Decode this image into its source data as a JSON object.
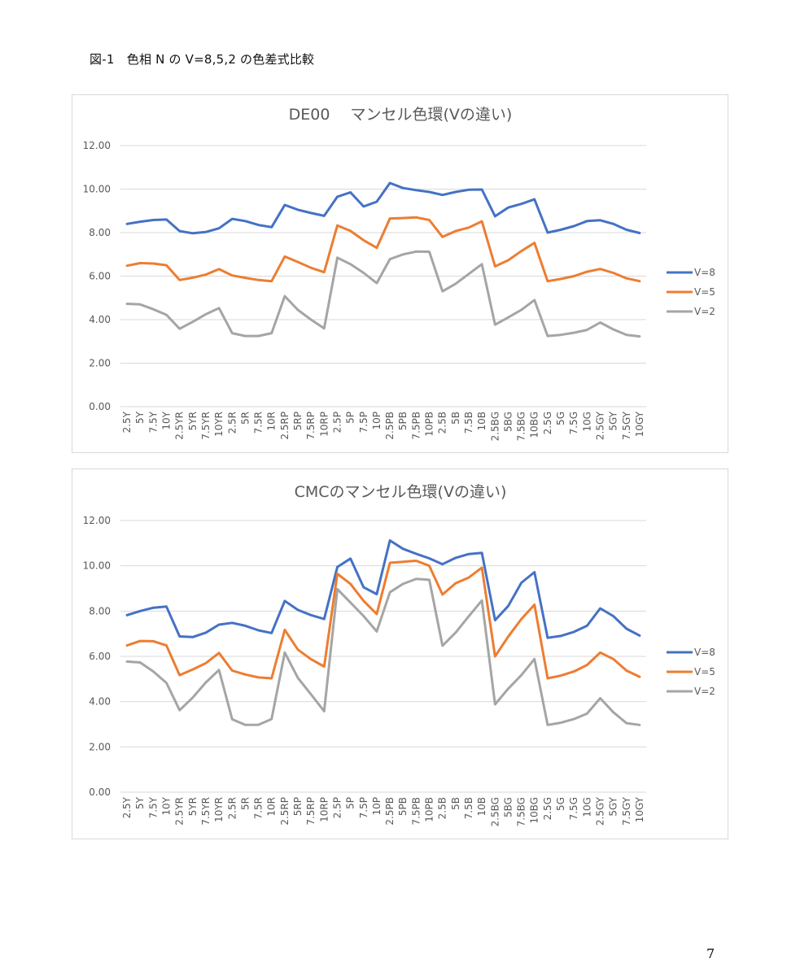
{
  "caption": "図-1　色相 N の V=8,5,2 の色差式比較",
  "page_number": "7",
  "chart_data": [
    {
      "type": "line",
      "title": "DE00　 マンセル色環(Vの違い)",
      "ylim": [
        0,
        12
      ],
      "yticks": [
        "0.00",
        "2.00",
        "4.00",
        "6.00",
        "8.00",
        "10.00",
        "12.00"
      ],
      "grid": true,
      "legend": "right",
      "categories": [
        "2.5Y",
        "5Y",
        "7.5Y",
        "10Y",
        "2.5YR",
        "5YR",
        "7.5YR",
        "10YR",
        "2.5R",
        "5R",
        "7.5R",
        "10R",
        "2.5RP",
        "5RP",
        "7.5RP",
        "10RP",
        "2.5P",
        "5P",
        "7.5P",
        "10P",
        "2.5PB",
        "5PB",
        "7.5PB",
        "10PB",
        "2.5B",
        "5B",
        "7.5B",
        "10B",
        "2.5BG",
        "5BG",
        "7.5BG",
        "10BG",
        "2.5G",
        "5G",
        "7.5G",
        "10G",
        "2.5GY",
        "5GY",
        "7.5GY",
        "10GY"
      ],
      "series": [
        {
          "name": "V=8",
          "color": "#4472C4",
          "values": [
            8.4,
            8.5,
            8.58,
            8.6,
            8.07,
            7.97,
            8.03,
            8.2,
            8.63,
            8.53,
            8.35,
            8.25,
            9.27,
            9.05,
            8.9,
            8.77,
            9.65,
            9.85,
            9.2,
            9.42,
            10.28,
            10.05,
            9.95,
            9.87,
            9.73,
            9.87,
            9.97,
            9.98,
            8.75,
            9.15,
            9.32,
            9.53,
            8.0,
            8.13,
            8.3,
            8.53,
            8.57,
            8.4,
            8.13,
            7.98
          ]
        },
        {
          "name": "V=5",
          "color": "#ED7D31",
          "values": [
            6.48,
            6.6,
            6.58,
            6.5,
            5.82,
            5.93,
            6.07,
            6.32,
            6.03,
            5.92,
            5.82,
            5.77,
            6.9,
            6.65,
            6.38,
            6.18,
            8.33,
            8.08,
            7.65,
            7.3,
            8.65,
            8.67,
            8.7,
            8.58,
            7.8,
            8.07,
            8.23,
            8.52,
            6.45,
            6.73,
            7.15,
            7.53,
            5.77,
            5.87,
            6.0,
            6.2,
            6.33,
            6.15,
            5.9,
            5.77
          ]
        },
        {
          "name": "V=2",
          "color": "#A5A5A5",
          "values": [
            4.73,
            4.7,
            4.48,
            4.22,
            3.58,
            3.9,
            4.25,
            4.53,
            3.38,
            3.25,
            3.25,
            3.38,
            5.08,
            4.45,
            4.0,
            3.6,
            6.85,
            6.55,
            6.15,
            5.68,
            6.78,
            7.0,
            7.13,
            7.12,
            5.3,
            5.65,
            6.1,
            6.55,
            3.77,
            4.1,
            4.45,
            4.9,
            3.25,
            3.3,
            3.4,
            3.53,
            3.87,
            3.55,
            3.3,
            3.23
          ]
        }
      ]
    },
    {
      "type": "line",
      "title": "CMCのマンセル色環(Vの違い)",
      "ylim": [
        0,
        12
      ],
      "yticks": [
        "0.00",
        "2.00",
        "4.00",
        "6.00",
        "8.00",
        "10.00",
        "12.00"
      ],
      "grid": true,
      "legend": "right",
      "categories": [
        "2.5Y",
        "5Y",
        "7.5Y",
        "10Y",
        "2.5YR",
        "5YR",
        "7.5YR",
        "10YR",
        "2.5R",
        "5R",
        "7.5R",
        "10R",
        "2.5RP",
        "5RP",
        "7.5RP",
        "10RP",
        "2.5P",
        "5P",
        "7.5P",
        "10P",
        "2.5PB",
        "5PB",
        "7.5PB",
        "10PB",
        "2.5B",
        "5B",
        "7.5B",
        "10B",
        "2.5BG",
        "5BG",
        "7.5BG",
        "10BG",
        "2.5G",
        "5G",
        "7.5G",
        "10G",
        "2.5GY",
        "5GY",
        "7.5GY",
        "10GY"
      ],
      "series": [
        {
          "name": "V=8",
          "color": "#4472C4",
          "values": [
            7.82,
            8.0,
            8.15,
            8.2,
            6.88,
            6.85,
            7.05,
            7.4,
            7.48,
            7.35,
            7.15,
            7.03,
            8.45,
            8.05,
            7.82,
            7.65,
            9.95,
            10.32,
            9.05,
            8.75,
            11.12,
            10.75,
            10.53,
            10.33,
            10.07,
            10.35,
            10.52,
            10.57,
            7.6,
            8.22,
            9.25,
            9.72,
            6.82,
            6.9,
            7.08,
            7.35,
            8.12,
            7.78,
            7.22,
            6.92
          ]
        },
        {
          "name": "V=5",
          "color": "#ED7D31",
          "values": [
            6.48,
            6.68,
            6.67,
            6.48,
            5.17,
            5.42,
            5.7,
            6.15,
            5.37,
            5.2,
            5.07,
            5.03,
            7.17,
            6.3,
            5.87,
            5.55,
            9.65,
            9.2,
            8.45,
            7.87,
            10.13,
            10.18,
            10.22,
            10.0,
            8.73,
            9.23,
            9.48,
            9.92,
            6.0,
            6.87,
            7.65,
            8.28,
            5.03,
            5.15,
            5.33,
            5.62,
            6.17,
            5.88,
            5.37,
            5.1
          ]
        },
        {
          "name": "V=2",
          "color": "#A5A5A5",
          "values": [
            5.77,
            5.73,
            5.33,
            4.83,
            3.62,
            4.18,
            4.85,
            5.4,
            3.22,
            2.97,
            2.98,
            3.23,
            6.17,
            5.05,
            4.32,
            3.58,
            8.97,
            8.38,
            7.78,
            7.1,
            8.83,
            9.2,
            9.42,
            9.38,
            6.47,
            7.05,
            7.77,
            8.47,
            3.88,
            4.57,
            5.17,
            5.88,
            2.97,
            3.07,
            3.23,
            3.47,
            4.15,
            3.53,
            3.05,
            2.97
          ]
        }
      ]
    }
  ]
}
